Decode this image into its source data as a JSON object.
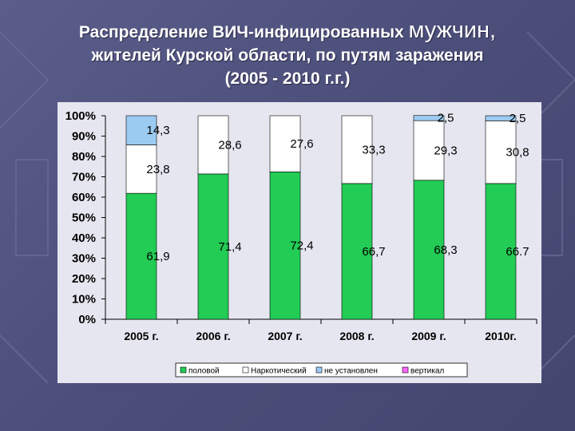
{
  "title": {
    "line1_start": "Распределение ВИЧ-инфицированных ",
    "line1_big": "мужчин,",
    "line2": "жителей Курской области, по путям заражения",
    "line3": "(2005 -  2010 г.г.)"
  },
  "colors": {
    "половой": "#22cc55",
    "Наркотический": "#ffffff",
    "не установлен": "#9ccbf2",
    "вертикал": "#ff66ff"
  },
  "chart_data": {
    "type": "bar",
    "stacked": true,
    "categories": [
      "2005 г.",
      "2006 г.",
      "2007 г.",
      "2008 г.",
      "2009 г.",
      "2010г."
    ],
    "series": [
      {
        "name": "половой",
        "values": [
          61.9,
          71.4,
          72.4,
          66.7,
          68.3,
          66.7
        ],
        "labels": [
          "61,9",
          "71,4",
          "72,4",
          "66,7",
          "68,3",
          "66.7"
        ]
      },
      {
        "name": "Наркотический",
        "values": [
          23.8,
          28.6,
          27.6,
          33.3,
          29.3,
          30.8
        ],
        "labels": [
          "23,8",
          "28,6",
          "27,6",
          "33,3",
          "29,3",
          "30,8"
        ]
      },
      {
        "name": "не установлен",
        "values": [
          14.3,
          0,
          0,
          0,
          2.5,
          2.5
        ],
        "labels": [
          "14,3",
          "",
          "",
          "",
          "2,5",
          "2,5"
        ]
      },
      {
        "name": "вертикал",
        "values": [
          0,
          0,
          0,
          0,
          0,
          0
        ],
        "labels": [
          "",
          "",
          "",
          "",
          "",
          ""
        ]
      }
    ],
    "ylim": [
      0,
      100
    ],
    "yticks": [
      "0%",
      "10%",
      "20%",
      "30%",
      "40%",
      "50%",
      "60%",
      "70%",
      "80%",
      "90%",
      "100%"
    ],
    "grid": false,
    "legend_position": "bottom",
    "legend": [
      "половой",
      "Наркотический",
      "не установлен",
      "вертикал"
    ]
  }
}
